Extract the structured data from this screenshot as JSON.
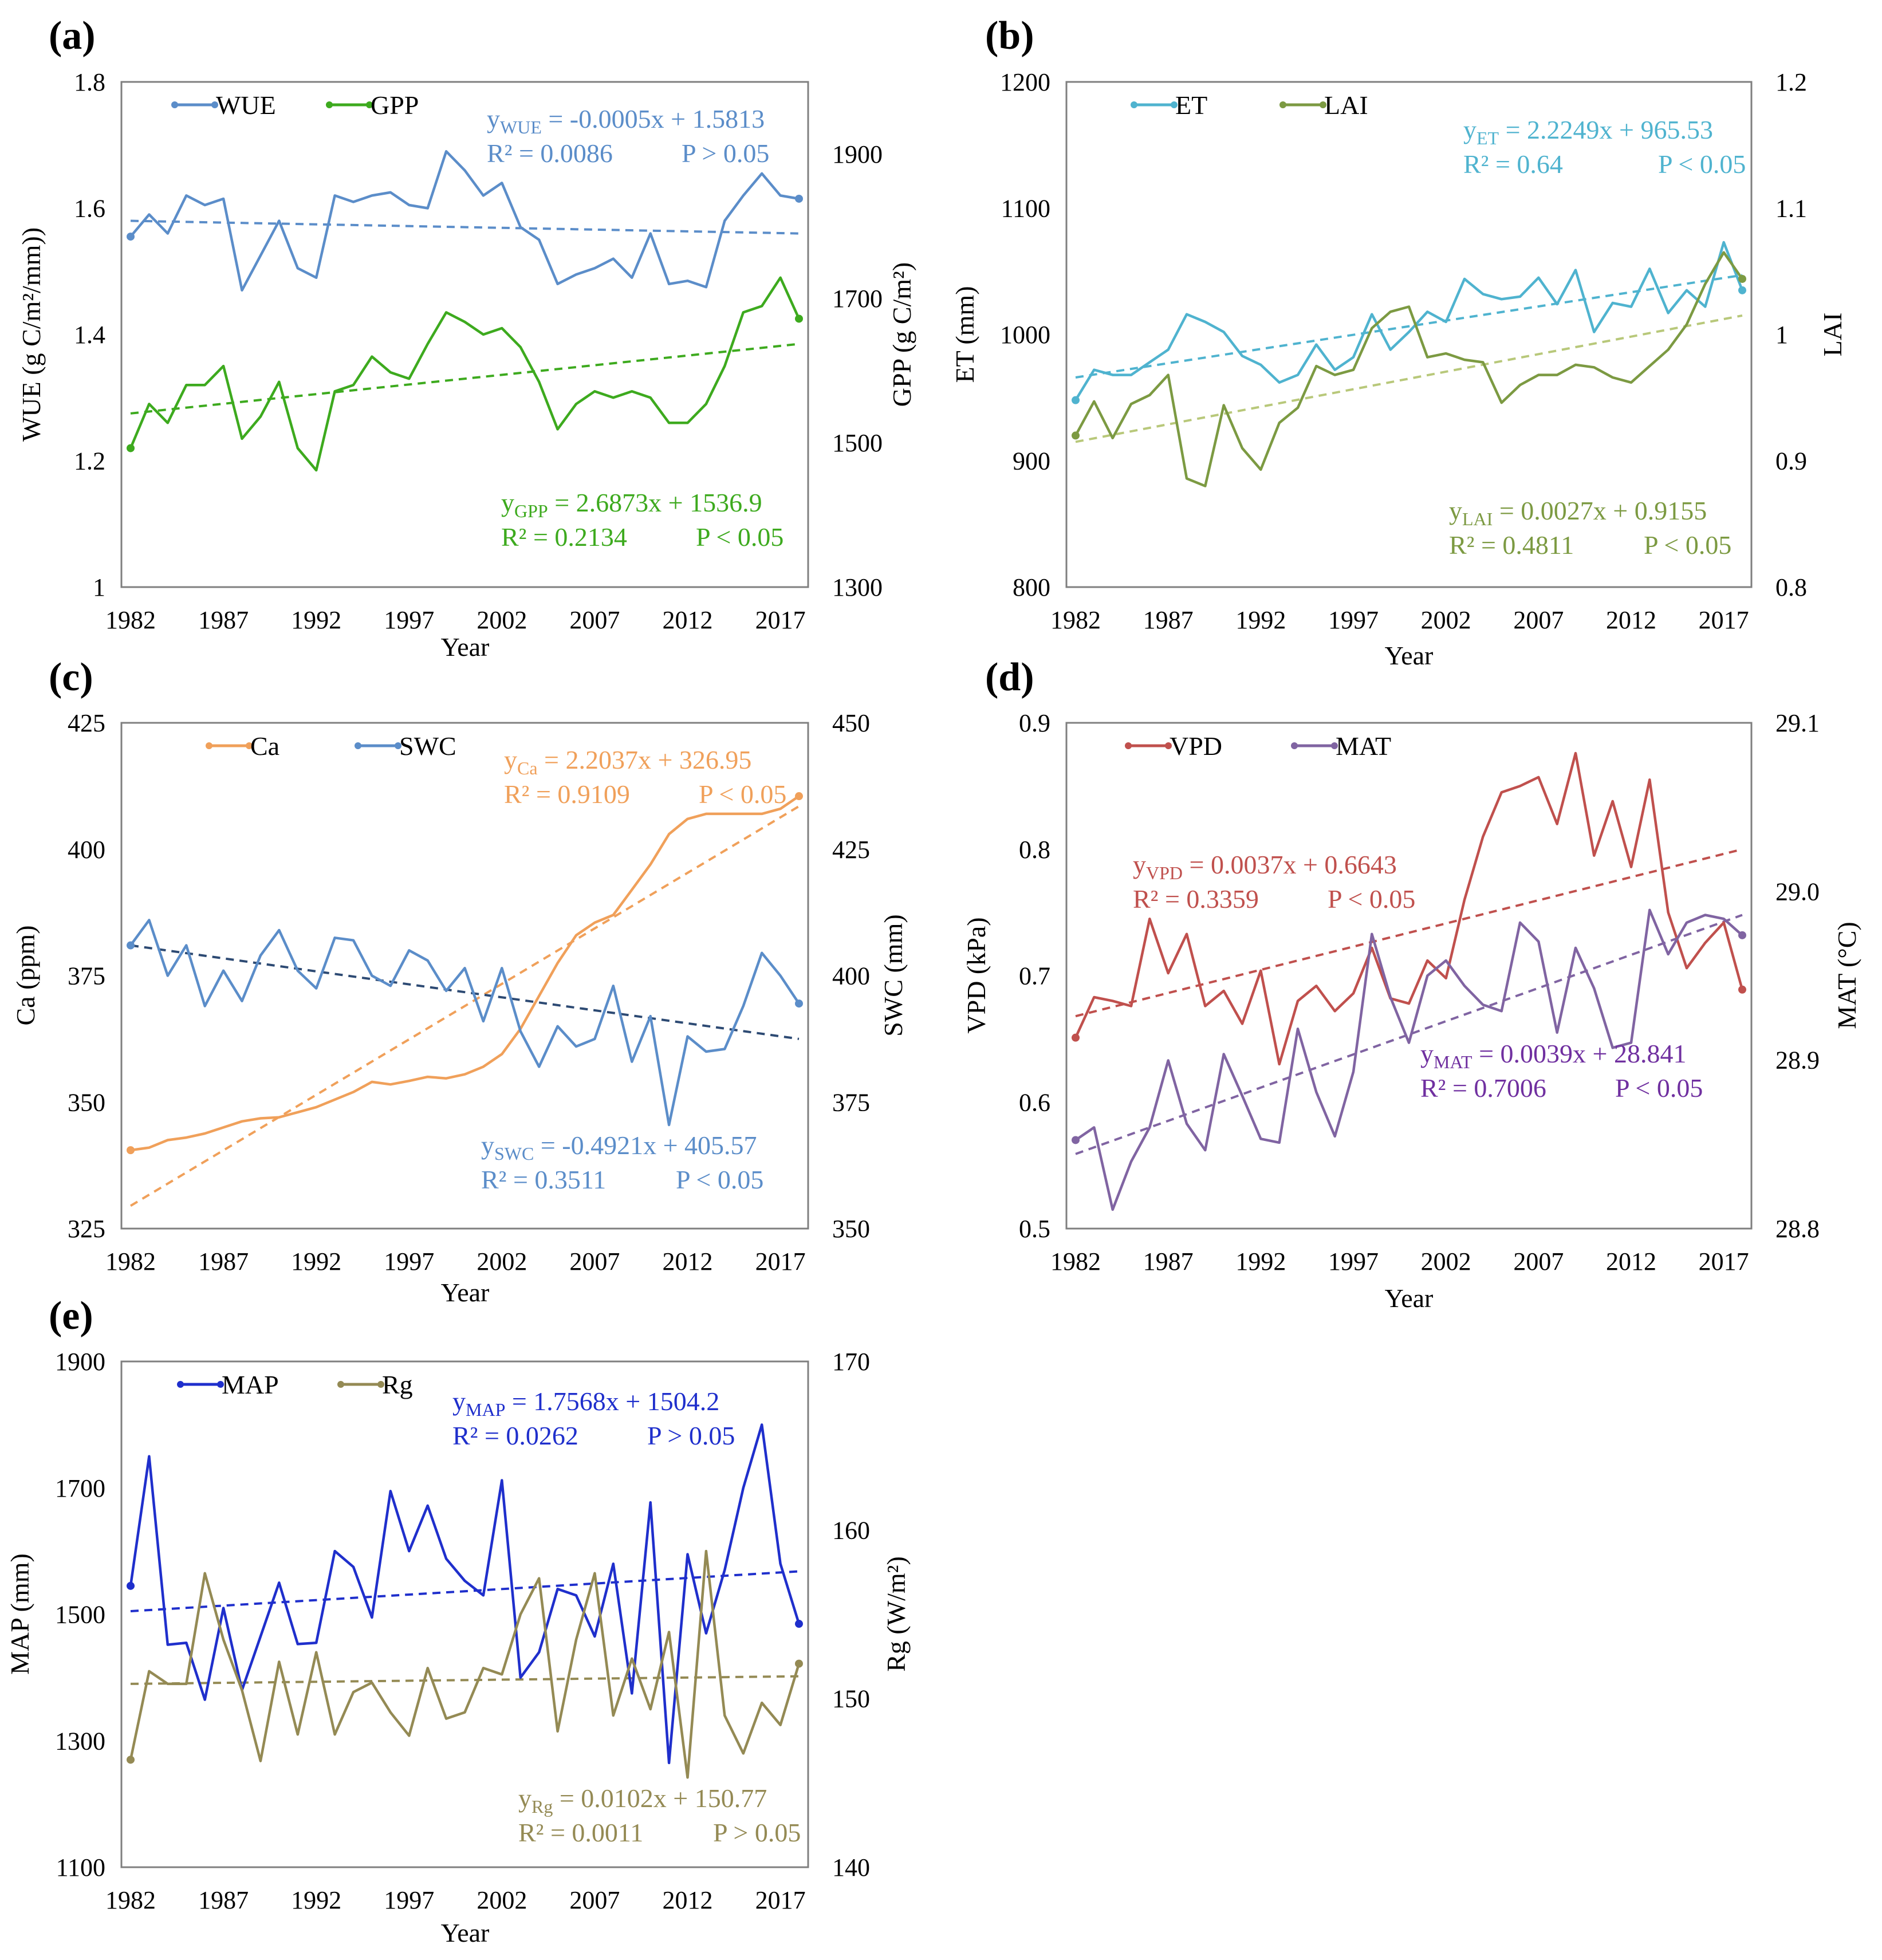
{
  "chart_data": [
    {
      "type": "line",
      "panel_label": "(a)",
      "xlabel": "Year",
      "ylabel_left": "WUE (g C/m²/mm))",
      "ylabel_right": "GPP  (g C/m²)",
      "x_ticks": [
        "1982",
        "1987",
        "1992",
        "1997",
        "2002",
        "2007",
        "2012",
        "2017"
      ],
      "y_left_ticks": [
        "1",
        "1.2",
        "1.4",
        "1.6",
        "1.8"
      ],
      "y_right_ticks": [
        "1300",
        "1500",
        "1700",
        "1900"
      ],
      "ylim_left": [
        1,
        1.8
      ],
      "ylim_right": [
        1300,
        2000
      ],
      "series": [
        {
          "name": "WUE",
          "axis": "left",
          "color": "#5b8dc9",
          "values": [
            1.555,
            1.59,
            1.56,
            1.62,
            1.605,
            1.615,
            1.47,
            1.525,
            1.58,
            1.505,
            1.49,
            1.62,
            1.61,
            1.62,
            1.625,
            1.605,
            1.6,
            1.69,
            1.66,
            1.62,
            1.64,
            1.57,
            1.55,
            1.48,
            1.495,
            1.505,
            1.52,
            1.49,
            1.56,
            1.48,
            1.485,
            1.475,
            1.58,
            1.62,
            1.655,
            1.62,
            1.615
          ]
        },
        {
          "name": "GPP",
          "axis": "left",
          "color": "#3daa1e",
          "values": [
            1.22,
            1.29,
            1.26,
            1.32,
            1.32,
            1.35,
            1.235,
            1.27,
            1.325,
            1.22,
            1.185,
            1.31,
            1.32,
            1.365,
            1.34,
            1.33,
            1.385,
            1.435,
            1.42,
            1.4,
            1.41,
            1.38,
            1.325,
            1.25,
            1.29,
            1.31,
            1.3,
            1.31,
            1.3,
            1.26,
            1.26,
            1.29,
            1.35,
            1.435,
            1.445,
            1.49,
            1.425
          ]
        }
      ],
      "trendlines": [
        {
          "series": "WUE",
          "color": "#5b8dc9",
          "start": 1.58,
          "end": 1.56
        },
        {
          "series": "GPP",
          "color": "#3daa1e",
          "start": 1.275,
          "end": 1.385
        }
      ],
      "annotations": [
        {
          "series": "WUE",
          "color": "#5b8dc9",
          "y_sub": "WUE",
          "eq": " = -0.0005x + 1.5813",
          "r2": "R² = 0.0086",
          "p": "P > 0.05"
        },
        {
          "series": "GPP",
          "color": "#3daa1e",
          "y_sub": "GPP",
          "eq": " = 2.6873x + 1536.9",
          "r2": "R² = 0.2134",
          "p": "P < 0.05"
        }
      ]
    },
    {
      "type": "line",
      "panel_label": "(b)",
      "xlabel": "Year",
      "ylabel_left": "ET (mm)",
      "ylabel_right": "LAI",
      "x_ticks": [
        "1982",
        "1987",
        "1992",
        "1997",
        "2002",
        "2007",
        "2012",
        "2017"
      ],
      "y_left_ticks": [
        "800",
        "900",
        "1000",
        "1100",
        "1200"
      ],
      "y_right_ticks": [
        "0.8",
        "0.9",
        "1",
        "1.1",
        "1.2"
      ],
      "ylim_left": [
        800,
        1200
      ],
      "ylim_right": [
        0.8,
        1.2
      ],
      "series": [
        {
          "name": "ET",
          "axis": "left",
          "color": "#4fb3cf",
          "values": [
            948,
            972,
            968,
            968,
            978,
            988,
            1016,
            1010,
            1002,
            983,
            976,
            962,
            968,
            992,
            972,
            982,
            1016,
            988,
            1002,
            1018,
            1010,
            1044,
            1032,
            1028,
            1030,
            1045,
            1024,
            1051,
            1002,
            1025,
            1022,
            1052,
            1017,
            1035,
            1022,
            1073,
            1035
          ]
        },
        {
          "name": "LAI",
          "axis": "left",
          "color": "#7c9a42",
          "values": [
            920,
            947,
            918,
            945,
            952,
            968,
            886,
            880,
            944,
            910,
            893,
            930,
            942,
            975,
            968,
            972,
            1005,
            1018,
            1022,
            982,
            985,
            980,
            978,
            946,
            960,
            968,
            968,
            976,
            974,
            966,
            962,
            975,
            988,
            1008,
            1040,
            1065,
            1044
          ]
        }
      ],
      "trendlines": [
        {
          "series": "ET",
          "color": "#4fb3cf",
          "start": 966,
          "end": 1047
        },
        {
          "series": "LAI",
          "color": "#b8c87a",
          "start": 915,
          "end": 1015
        }
      ],
      "annotations": [
        {
          "series": "ET",
          "color": "#4fb3cf",
          "y_sub": "ET",
          "eq": " = 2.2249x + 965.53",
          "r2": "R² = 0.64",
          "p": "P < 0.05"
        },
        {
          "series": "LAI",
          "color": "#7c9a42",
          "y_sub": "LAI",
          "eq": " = 0.0027x + 0.9155",
          "r2": "R² = 0.4811",
          "p": "P < 0.05"
        }
      ]
    },
    {
      "type": "line",
      "panel_label": "(c)",
      "xlabel": "Year",
      "ylabel_left": "Ca (ppm)",
      "ylabel_right": "SWC (mm)",
      "x_ticks": [
        "1982",
        "1987",
        "1992",
        "1997",
        "2002",
        "2007",
        "2012",
        "2017"
      ],
      "y_left_ticks": [
        "325",
        "350",
        "375",
        "400",
        "425"
      ],
      "y_right_ticks": [
        "350",
        "375",
        "400",
        "425",
        "450"
      ],
      "ylim_left": [
        325,
        425
      ],
      "ylim_right": [
        350,
        450
      ],
      "series": [
        {
          "name": "Ca",
          "axis": "left",
          "color": "#f0a05a",
          "values": [
            340.5,
            341,
            342.5,
            343,
            343.8,
            345,
            346.2,
            346.8,
            347,
            348,
            349,
            350.5,
            352,
            354,
            353.5,
            354.2,
            355,
            354.7,
            355.5,
            357,
            359.5,
            364.5,
            371,
            377.5,
            383,
            385.5,
            387,
            392,
            397,
            403,
            406,
            407,
            407,
            407,
            407,
            408,
            410.5
          ]
        },
        {
          "name": "SWC",
          "axis": "left",
          "color": "#5b8dc9",
          "values": [
            381,
            386,
            375,
            381,
            369,
            376,
            370,
            379,
            384,
            376,
            372.5,
            382.5,
            382,
            375,
            373,
            380,
            378,
            372,
            376.5,
            366,
            376.5,
            364,
            357,
            365,
            361,
            362.5,
            373,
            358,
            367,
            345.5,
            363,
            360,
            360.5,
            369,
            379.5,
            375,
            369.5
          ]
        }
      ],
      "trendlines": [
        {
          "series": "Ca",
          "color": "#f0a05a",
          "start": 329.5,
          "end": 408.5
        },
        {
          "series": "SWC",
          "color": "#2d4a73",
          "start": 381,
          "end": 362.5
        }
      ],
      "annotations": [
        {
          "series": "Ca",
          "color": "#f0a05a",
          "y_sub": "Ca",
          "eq": " = 2.2037x + 326.95",
          "r2": "R² = 0.9109",
          "p": "P < 0.05"
        },
        {
          "series": "SWC",
          "color": "#5b8dc9",
          "y_sub": "SWC",
          "eq": " = -0.4921x + 405.57",
          "r2": "R² = 0.3511",
          "p": "P < 0.05"
        }
      ]
    },
    {
      "type": "line",
      "panel_label": "(d)",
      "xlabel": "Year",
      "ylabel_left": "VPD (kPa)",
      "ylabel_right": "MAT (°C)",
      "x_ticks": [
        "1982",
        "1987",
        "1992",
        "1997",
        "2002",
        "2007",
        "2012",
        "2017"
      ],
      "y_left_ticks": [
        "0.5",
        "0.6",
        "0.7",
        "0.8",
        "0.9"
      ],
      "y_right_ticks": [
        "28.8",
        "28.9",
        "29.0",
        "29.1"
      ],
      "ylim_left": [
        0.5,
        0.9
      ],
      "ylim_right": [
        28.8,
        29.1
      ],
      "series": [
        {
          "name": "VPD",
          "axis": "left",
          "color": "#c0504d",
          "values": [
            0.651,
            0.683,
            0.68,
            0.676,
            0.745,
            0.702,
            0.733,
            0.676,
            0.688,
            0.662,
            0.704,
            0.63,
            0.68,
            0.692,
            0.672,
            0.686,
            0.722,
            0.682,
            0.678,
            0.712,
            0.698,
            0.76,
            0.81,
            0.845,
            0.85,
            0.857,
            0.82,
            0.876,
            0.795,
            0.838,
            0.786,
            0.855,
            0.75,
            0.706,
            0.726,
            0.742,
            0.689
          ]
        },
        {
          "name": "MAT",
          "axis": "left",
          "color": "#8064a2",
          "values": [
            0.57,
            0.58,
            0.515,
            0.553,
            0.58,
            0.633,
            0.583,
            0.562,
            0.638,
            0.605,
            0.571,
            0.568,
            0.658,
            0.608,
            0.573,
            0.624,
            0.733,
            0.683,
            0.647,
            0.7,
            0.712,
            0.692,
            0.677,
            0.672,
            0.742,
            0.727,
            0.655,
            0.722,
            0.69,
            0.643,
            0.647,
            0.752,
            0.717,
            0.742,
            0.748,
            0.745,
            0.732
          ]
        }
      ],
      "trendlines": [
        {
          "series": "VPD",
          "color": "#c0504d",
          "start": 0.668,
          "end": 0.8
        },
        {
          "series": "MAT",
          "color": "#8064a2",
          "start": 0.559,
          "end": 0.748
        }
      ],
      "annotations": [
        {
          "series": "VPD",
          "color": "#c0504d",
          "y_sub": "VPD",
          "eq": " = 0.0037x + 0.6643",
          "r2": "R² = 0.3359",
          "p": "P < 0.05"
        },
        {
          "series": "MAT",
          "color": "#7030a0",
          "y_sub": "MAT",
          "eq": " = 0.0039x + 28.841",
          "r2": "R² = 0.7006",
          "p": "P < 0.05"
        }
      ]
    },
    {
      "type": "line",
      "panel_label": "(e)",
      "xlabel": "Year",
      "ylabel_left": "MAP (mm)",
      "ylabel_right": "Rg (W/m²)",
      "x_ticks": [
        "1982",
        "1987",
        "1992",
        "1997",
        "2002",
        "2007",
        "2012",
        "2017"
      ],
      "y_left_ticks": [
        "1100",
        "1300",
        "1500",
        "1700",
        "1900"
      ],
      "y_right_ticks": [
        "140",
        "150",
        "160",
        "170"
      ],
      "ylim_left": [
        1100,
        1900
      ],
      "ylim_right": [
        140,
        170
      ],
      "series": [
        {
          "name": "MAP",
          "axis": "left",
          "color": "#1f2fcc",
          "values": [
            1545,
            1750,
            1452,
            1455,
            1365,
            1510,
            1380,
            1465,
            1550,
            1453,
            1455,
            1600,
            1575,
            1495,
            1695,
            1600,
            1672,
            1588,
            1553,
            1530,
            1712,
            1400,
            1440,
            1540,
            1530,
            1465,
            1580,
            1375,
            1677,
            1265,
            1595,
            1470,
            1570,
            1700,
            1800,
            1580,
            1485
          ]
        },
        {
          "name": "Rg",
          "axis": "left",
          "color": "#948a54",
          "values": [
            1270,
            1410,
            1390,
            1390,
            1565,
            1460,
            1380,
            1268,
            1425,
            1310,
            1440,
            1310,
            1377,
            1392,
            1345,
            1308,
            1415,
            1335,
            1345,
            1415,
            1405,
            1500,
            1557,
            1315,
            1460,
            1565,
            1340,
            1430,
            1350,
            1472,
            1242,
            1600,
            1340,
            1280,
            1360,
            1325,
            1422
          ]
        }
      ],
      "trendlines": [
        {
          "series": "MAP",
          "color": "#1f2fcc",
          "start": 1505,
          "end": 1568
        },
        {
          "series": "Rg",
          "color": "#948a54",
          "start": 1390,
          "end": 1402
        }
      ],
      "annotations": [
        {
          "series": "MAP",
          "color": "#1f2fcc",
          "y_sub": "MAP",
          "eq": " = 1.7568x + 1504.2",
          "r2": "R² = 0.0262",
          "p": "P > 0.05"
        },
        {
          "series": "Rg",
          "color": "#948a54",
          "y_sub": "Rg",
          "eq": " = 0.0102x + 150.77",
          "r2": "R² = 0.0011",
          "p": "P > 0.05"
        }
      ]
    }
  ]
}
